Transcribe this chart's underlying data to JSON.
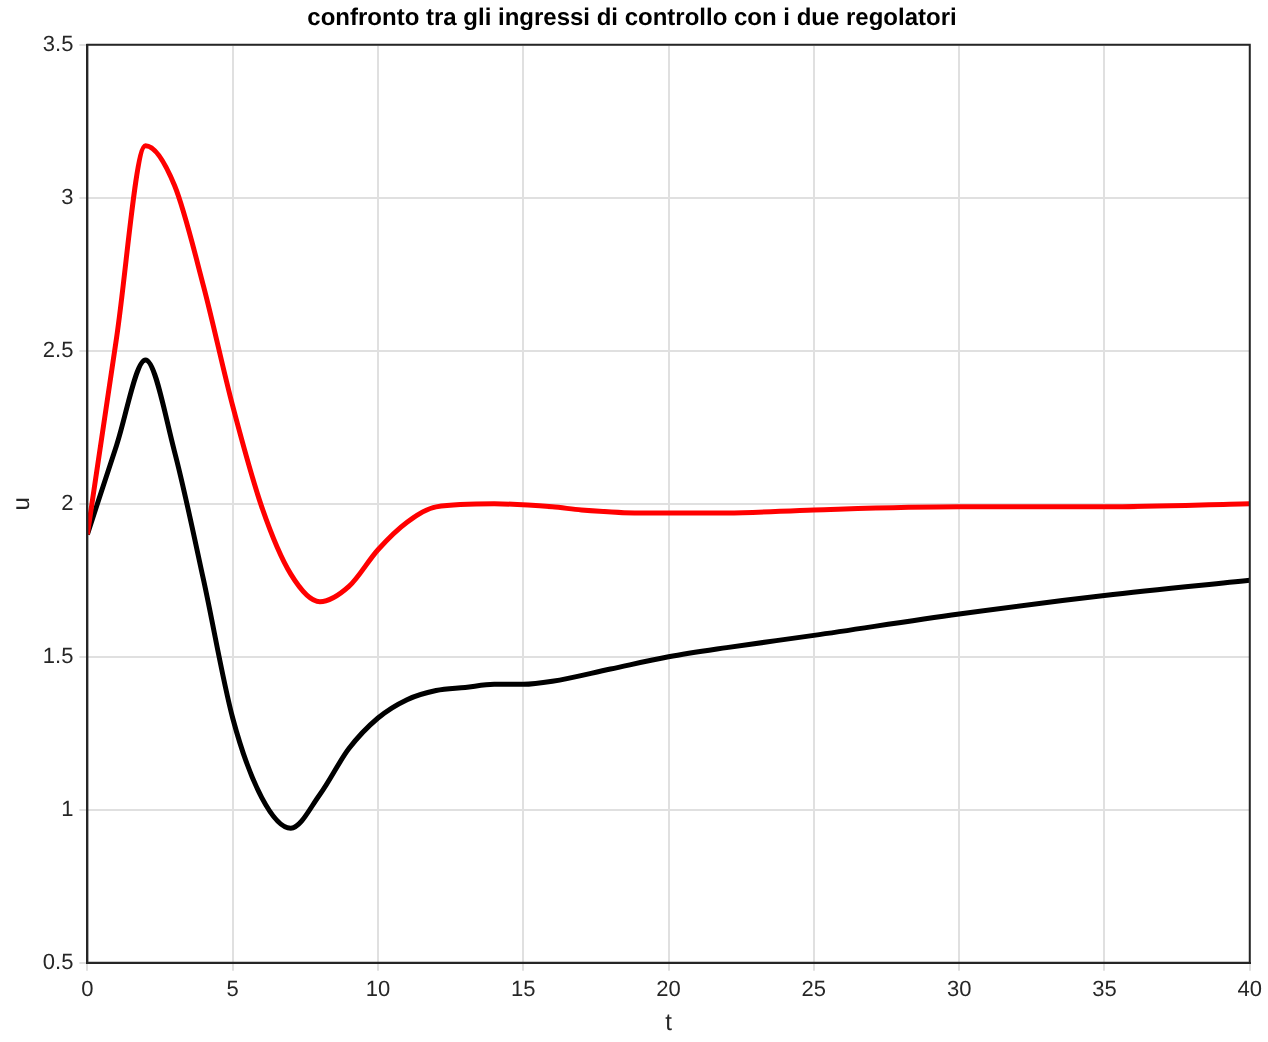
{
  "chart_data": {
    "type": "line",
    "title": "confronto tra gli ingressi di controllo con i due regolatori",
    "xlabel": "t",
    "ylabel": "u",
    "xlim": [
      0,
      40
    ],
    "xticks": [
      0,
      5,
      10,
      15,
      20,
      25,
      30,
      35,
      40
    ],
    "ylim": [
      0.5,
      3.5
    ],
    "yticks": [
      0.5,
      1,
      1.5,
      2,
      2.5,
      3,
      3.5
    ],
    "grid": true,
    "marker": "none",
    "line_style": "solid",
    "series": [
      {
        "color": "#ff0000",
        "x": [
          0,
          1,
          2,
          3,
          4,
          5,
          6,
          7,
          8,
          9,
          10,
          11,
          12,
          14,
          16,
          17,
          19,
          22,
          25,
          30,
          35,
          40
        ],
        "values": [
          1.9,
          2.54,
          3.17,
          3.04,
          2.71,
          2.32,
          1.99,
          1.77,
          1.68,
          1.73,
          1.85,
          1.94,
          1.99,
          2.0,
          1.99,
          1.98,
          1.97,
          1.97,
          1.98,
          1.99,
          1.99,
          2.0
        ]
      },
      {
        "color": "#000000",
        "x": [
          0,
          1,
          2,
          3,
          4,
          5,
          6,
          7,
          8,
          9,
          10,
          11,
          12,
          13,
          14,
          15,
          16,
          18,
          20,
          22,
          25,
          30,
          35,
          40
        ],
        "values": [
          1.9,
          2.19,
          2.47,
          2.17,
          1.75,
          1.3,
          1.04,
          0.94,
          1.05,
          1.2,
          1.3,
          1.36,
          1.39,
          1.4,
          1.41,
          1.41,
          1.42,
          1.46,
          1.5,
          1.53,
          1.57,
          1.64,
          1.7,
          1.75
        ]
      }
    ]
  }
}
